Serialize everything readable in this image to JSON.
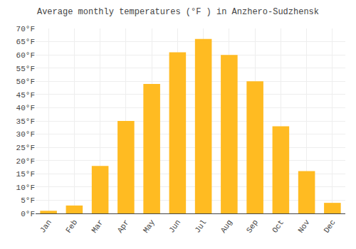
{
  "chart_data": {
    "type": "bar",
    "title": "Average monthly temperatures (°F ) in Anzhero-Sudzhensk",
    "categories": [
      "Jan",
      "Feb",
      "Mar",
      "Apr",
      "May",
      "Jun",
      "Jul",
      "Aug",
      "Sep",
      "Oct",
      "Nov",
      "Dec"
    ],
    "values": [
      1,
      3,
      18,
      35,
      49,
      61,
      66,
      60,
      50,
      33,
      16,
      4
    ],
    "color": "#FFBB22",
    "ylim": [
      0,
      70
    ],
    "yticks": [
      {
        "value": 0,
        "label": "0°F"
      },
      {
        "value": 5,
        "label": "5°F"
      },
      {
        "value": 10,
        "label": "10°F"
      },
      {
        "value": 15,
        "label": "15°F"
      },
      {
        "value": 20,
        "label": "20°F"
      },
      {
        "value": 25,
        "label": "25°F"
      },
      {
        "value": 30,
        "label": "30°F"
      },
      {
        "value": 35,
        "label": "35°F"
      },
      {
        "value": 40,
        "label": "40°F"
      },
      {
        "value": 45,
        "label": "45°F"
      },
      {
        "value": 50,
        "label": "50°F"
      },
      {
        "value": 55,
        "label": "55°F"
      },
      {
        "value": 60,
        "label": "60°F"
      },
      {
        "value": 65,
        "label": "65°F"
      },
      {
        "value": 70,
        "label": "70°F"
      }
    ],
    "grid": true
  }
}
